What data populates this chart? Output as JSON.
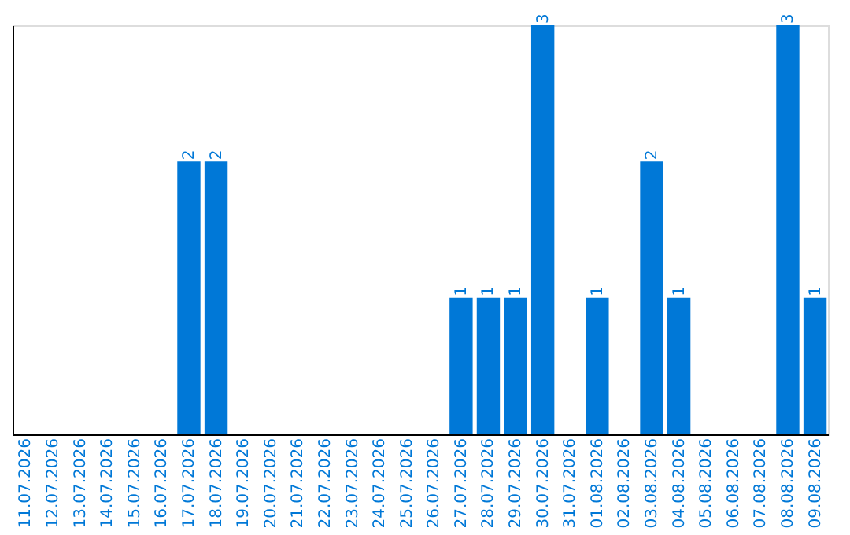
{
  "chart_data": {
    "type": "bar",
    "categories": [
      "11.07.2026",
      "12.07.2026",
      "13.07.2026",
      "14.07.2026",
      "15.07.2026",
      "16.07.2026",
      "17.07.2026",
      "18.07.2026",
      "19.07.2026",
      "20.07.2026",
      "21.07.2026",
      "22.07.2026",
      "23.07.2026",
      "24.07.2026",
      "25.07.2026",
      "26.07.2026",
      "27.07.2026",
      "28.07.2026",
      "29.07.2026",
      "30.07.2026",
      "31.07.2026",
      "01.08.2026",
      "02.08.2026",
      "03.08.2026",
      "04.08.2026",
      "05.08.2026",
      "06.08.2026",
      "07.08.2026",
      "08.08.2026",
      "09.08.2026"
    ],
    "values": [
      0,
      0,
      0,
      0,
      0,
      0,
      2,
      2,
      0,
      0,
      0,
      0,
      0,
      0,
      0,
      0,
      1,
      1,
      1,
      3,
      0,
      1,
      0,
      2,
      1,
      0,
      0,
      0,
      3,
      1
    ],
    "value_labels": [
      null,
      null,
      null,
      null,
      null,
      null,
      "2",
      "2",
      null,
      null,
      null,
      null,
      null,
      null,
      null,
      null,
      "1",
      "1",
      "1",
      "3",
      null,
      "1",
      null,
      "2",
      "1",
      null,
      null,
      null,
      "3",
      "1"
    ],
    "color": "#0078d7"
  }
}
